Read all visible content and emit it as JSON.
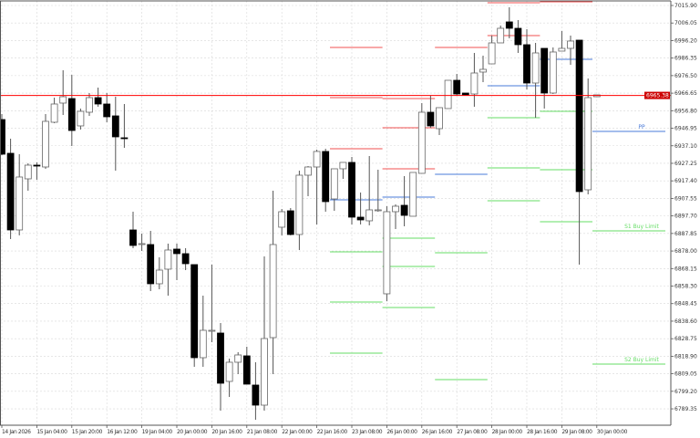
{
  "chart_data": {
    "type": "candlestick",
    "timeframe_note": "",
    "y_ticks": [
      "7015.90",
      "7006.05",
      "6996.20",
      "6986.35",
      "6976.50",
      "6966.65",
      "6956.80",
      "6946.95",
      "6937.10",
      "6927.25",
      "6917.40",
      "6907.55",
      "6897.70",
      "6887.85",
      "6878.00",
      "6868.15",
      "6858.30",
      "6848.45",
      "6838.60",
      "6828.75",
      "6818.90",
      "6809.05",
      "6799.20",
      "6789.35"
    ],
    "ylim": [
      6780.0,
      7018.0
    ],
    "x_labels": [
      {
        "bar": 0,
        "label": "14 Jan 2026"
      },
      {
        "bar": 4,
        "label": "15 Jan 04:00"
      },
      {
        "bar": 8,
        "label": "15 Jan 20:00"
      },
      {
        "bar": 12,
        "label": "16 Jan 12:00"
      },
      {
        "bar": 16,
        "label": "19 Jan 04:00"
      },
      {
        "bar": 20,
        "label": "20 Jan 00:00"
      },
      {
        "bar": 24,
        "label": "20 Jan 16:00"
      },
      {
        "bar": 28,
        "label": "21 Jan 08:00"
      },
      {
        "bar": 32,
        "label": "22 Jan 00:00"
      },
      {
        "bar": 36,
        "label": "22 Jan 16:00"
      },
      {
        "bar": 40,
        "label": "23 Jan 08:00"
      },
      {
        "bar": 44,
        "label": "26 Jan 00:00"
      },
      {
        "bar": 48,
        "label": "26 Jan 16:00"
      },
      {
        "bar": 52,
        "label": "27 Jan 08:00"
      },
      {
        "bar": 56,
        "label": "28 Jan 00:00"
      },
      {
        "bar": 60,
        "label": "28 Jan 16:00"
      },
      {
        "bar": 64,
        "label": "29 Jan 08:00"
      },
      {
        "bar": 68,
        "label": "30 Jan 00:00"
      }
    ],
    "candles": [
      [
        6951.84,
        6954.92,
        6931.86,
        6932.37
      ],
      [
        6932.88,
        6941.08,
        6884.71,
        6889.83
      ],
      [
        6889.83,
        6932.37,
        6886.76,
        6919.56
      ],
      [
        6918.53,
        6927.24,
        6911.87,
        6926.22
      ],
      [
        6926.22,
        6927.76,
        6918.02,
        6925.71
      ],
      [
        6925.19,
        6954.92,
        6924.17,
        6950.82
      ],
      [
        6950.31,
        6964.14,
        6949.79,
        6960.56
      ],
      [
        6961.07,
        6979.52,
        6954.41,
        6964.65
      ],
      [
        6963.63,
        6976.96,
        6936.98,
        6945.69
      ],
      [
        6948.26,
        6958.0,
        6946.21,
        6956.46
      ],
      [
        6955.94,
        6966.71,
        6953.89,
        6964.14
      ],
      [
        6964.14,
        6969.78,
        6959.02,
        6960.56
      ],
      [
        6960.56,
        6966.71,
        6950.31,
        6953.38
      ],
      [
        6953.89,
        6964.65,
        6923.14,
        6942.11
      ],
      [
        6941.59,
        6960.56,
        6935.96,
        6941.08
      ],
      [
        6889.83,
        6900.08,
        6879.58,
        6881.12
      ],
      [
        6881.63,
        6887.78,
        6878.05,
        6882.14
      ],
      [
        6881.63,
        6889.32,
        6855.5,
        6859.6
      ],
      [
        6859.6,
        6874.46,
        6856.52,
        6867.28
      ],
      [
        6867.8,
        6882.14,
        6852.93,
        6878.56
      ],
      [
        6879.07,
        6882.14,
        6861.65,
        6876.51
      ],
      [
        6876.51,
        6879.58,
        6867.28,
        6870.87
      ],
      [
        6870.36,
        6870.36,
        6812.96,
        6818.08
      ],
      [
        6818.08,
        6852.93,
        6812.96,
        6833.46
      ],
      [
        6832.94,
        6870.36,
        6826.79,
        6833.46
      ],
      [
        6831.92,
        6837.56,
        6788.36,
        6803.73
      ],
      [
        6804.76,
        6817.57,
        6796.04,
        6815.52
      ],
      [
        6815.52,
        6821.16,
        6808.86,
        6819.62
      ],
      [
        6819.11,
        6824.23,
        6803.22,
        6803.22
      ],
      [
        6802.71,
        6815.52,
        6783.23,
        6791.43
      ],
      [
        6791.43,
        6874.97,
        6788.36,
        6828.84
      ],
      [
        6829.36,
        6911.87,
        6808.86,
        6881.63
      ],
      [
        6891.37,
        6901.62,
        6886.76,
        6900.08
      ],
      [
        6900.59,
        6902.13,
        6886.76,
        6887.27
      ],
      [
        6887.27,
        6923.14,
        6878.56,
        6920.58
      ],
      [
        6920.58,
        6925.71,
        6908.79,
        6925.19
      ],
      [
        6925.19,
        6934.93,
        6892.91,
        6933.91
      ],
      [
        6933.91,
        6935.44,
        6900.08,
        6905.72
      ],
      [
        6907.25,
        6924.17,
        6900.59,
        6924.17
      ],
      [
        6924.17,
        6927.76,
        6918.53,
        6927.76
      ],
      [
        6927.76,
        6930.83,
        6892.91,
        6897.01
      ],
      [
        6897.01,
        6910.84,
        6892.91,
        6895.47
      ],
      [
        6894.96,
        6931.34,
        6892.4,
        6901.11
      ],
      [
        6901.11,
        6923.66,
        6900.08,
        6901.11
      ],
      [
        6853.96,
        6903.16,
        6849.86,
        6900.08
      ],
      [
        6900.08,
        6904.18,
        6890.34,
        6903.16
      ],
      [
        6903.67,
        6920.07,
        6891.88,
        6898.03
      ],
      [
        6897.52,
        6922.12,
        6897.52,
        6922.12
      ],
      [
        6921.61,
        6961.07,
        6921.61,
        6955.94
      ],
      [
        6955.94,
        6965.17,
        6947.23,
        6948.26
      ],
      [
        6946.72,
        6958.51,
        6943.13,
        6958.51
      ],
      [
        6958.0,
        6973.88,
        6958.0,
        6973.88
      ],
      [
        6973.88,
        6977.47,
        6965.17,
        6966.19
      ],
      [
        6966.71,
        6966.71,
        6965.68,
        6965.68
      ],
      [
        6966.19,
        6989.25,
        6959.02,
        6977.98
      ],
      [
        6978.5,
        6987.72,
        6972.86,
        6980.03
      ],
      [
        6983.1,
        6998.99,
        6983.1,
        6994.89
      ],
      [
        6994.89,
        7004.63,
        6994.89,
        7003.09
      ],
      [
        7006.68,
        7014.88,
        6997.45,
        7003.09
      ],
      [
        7003.09,
        7007.7,
        6989.25,
        6993.87
      ],
      [
        6993.87,
        7002.58,
        6968.76,
        6972.34
      ],
      [
        6972.34,
        6994.89,
        6952.87,
        6989.25
      ],
      [
        6991.82,
        6991.82,
        6958.0,
        6966.71
      ],
      [
        6966.71,
        6992.33,
        6966.19,
        6989.77
      ],
      [
        6990.28,
        7001.55,
        6990.28,
        6991.82
      ],
      [
        6991.82,
        6998.99,
        6982.59,
        6995.92
      ],
      [
        6996.43,
        6996.43,
        6870.36,
        6911.36
      ],
      [
        6912.38,
        6974.91,
        6909.82,
        6964.14
      ],
      [
        6964.65,
        6965.17,
        6964.65,
        6965.68
      ]
    ],
    "current_price": {
      "value": 6965.38,
      "label": "6965.38",
      "color": "#ff0000"
    },
    "pivot_segments": [
      {
        "from_bar": 37.5,
        "to_bar": 43.5,
        "resistance": [
          6992.33,
          6964.14,
          6935.44
        ],
        "pivot": 6906.74,
        "support": [
          6877.53,
          6849.35,
          6820.64
        ]
      },
      {
        "from_bar": 43.5,
        "to_bar": 49.5,
        "resistance": [
          6963.63,
          6947.23,
          6924.17
        ],
        "pivot": 6908.28,
        "support": [
          6885.22,
          6869.33,
          6846.27
        ]
      },
      {
        "from_bar": 49.5,
        "to_bar": 55.5,
        "resistance": [
          6992.33
        ],
        "pivot": 6921.1,
        "support": [
          6877.02,
          6805.78
        ]
      },
      {
        "from_bar": 55.5,
        "to_bar": 61.5,
        "resistance": [
          7017.44,
          6998.99
        ],
        "pivot": 6970.81,
        "support": [
          6952.87,
          6924.68,
          6906.23
        ]
      },
      {
        "from_bar": 61.5,
        "to_bar": 67.5,
        "resistance": [
          7017.96
        ],
        "pivot": 6985.67,
        "support": [
          6956.46,
          6923.66,
          6894.44
        ]
      }
    ],
    "labeled_levels": [
      {
        "label": "PP",
        "value": 6945.18,
        "color": "#4a7bd8"
      },
      {
        "label": "S1 Buy Limit",
        "value": 6889.32,
        "color": "#66dd66"
      },
      {
        "label": "S2 Buy Limit",
        "value": 6814.49,
        "color": "#66dd66"
      }
    ],
    "colors": {
      "resistance": "#f05050",
      "pivot": "#4a7bd8",
      "support": "#66dd66",
      "bull_body": "#ffffff",
      "bear_body": "#000000",
      "grid": "#d8d8d8"
    },
    "grid": true
  }
}
